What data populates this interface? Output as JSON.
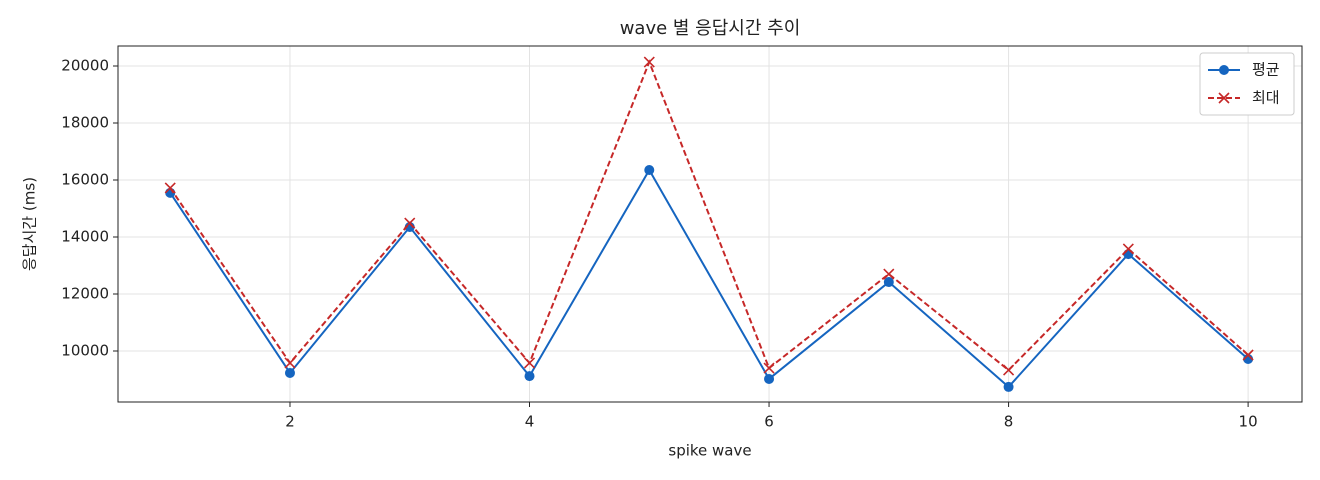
{
  "chart_data": {
    "type": "line",
    "title": "wave 별 응답시간 추이",
    "x_label": "spike wave",
    "y_label": "응답시간 (ms)",
    "x": [
      1,
      2,
      3,
      4,
      5,
      6,
      7,
      8,
      9,
      10
    ],
    "series": [
      {
        "name": "평균",
        "color": "#1565c0",
        "marker": "o",
        "linestyle": "solid",
        "values": [
          15550,
          9230,
          14350,
          9120,
          16350,
          9020,
          12420,
          8740,
          13400,
          9720
        ]
      },
      {
        "name": "최대",
        "color": "#c62828",
        "marker": "x",
        "linestyle": "dashed",
        "values": [
          15720,
          9580,
          14490,
          9580,
          20140,
          9400,
          12700,
          9330,
          13580,
          9860
        ]
      }
    ],
    "xlim": [
      0.564,
      10.45
    ],
    "xticks": [
      2,
      4,
      6,
      8,
      10
    ],
    "ylim": [
      8211,
      20702
    ],
    "yticks": [
      10000,
      12000,
      14000,
      16000,
      18000,
      20000
    ],
    "grid": true,
    "legend": "upper right"
  }
}
